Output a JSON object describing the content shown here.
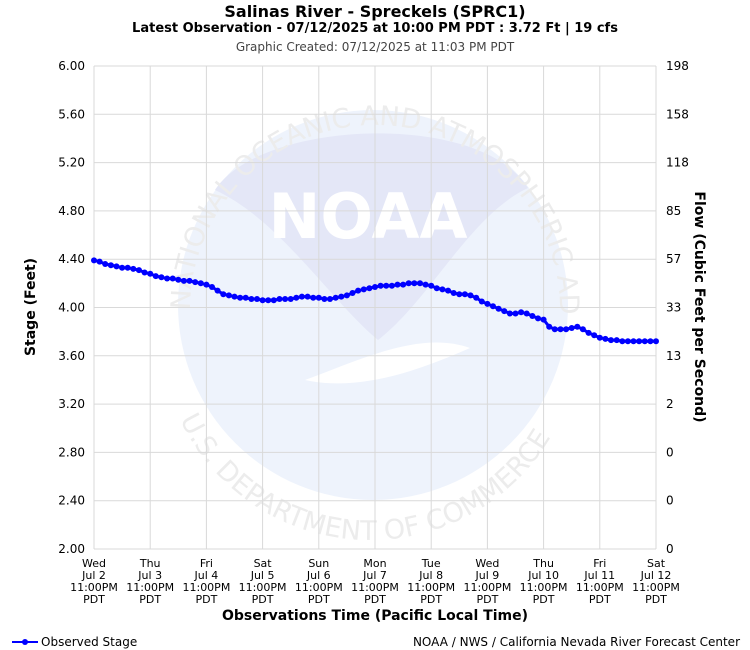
{
  "header": {
    "title": "Salinas River - Spreckels (SPRC1)",
    "subtitle": "Latest Observation - 07/12/2025 at 10:00 PM PDT : 3.72 Ft | 19 cfs",
    "created": "Graphic Created: 07/12/2025 at 11:03 PM PDT"
  },
  "watermark": {
    "logo_text": "NOAA",
    "ring_top": "NATIONAL OCEANIC AND ATMOSPHERIC ADMINISTRATION",
    "ring_bottom": "U.S. DEPARTMENT OF COMMERCE"
  },
  "footer": {
    "legend_label": "Observed Stage",
    "credit": "NOAA / NWS / California Nevada River Forecast Center"
  },
  "colors": {
    "series": "#0000ff",
    "grid": "#d9d9d9",
    "watermark": "#e6ebf8"
  },
  "chart_data": {
    "type": "line",
    "xlabel": "Observations Time (Pacific Local Time)",
    "ylabel": "Stage (Feet)",
    "y2label": "Flow (Cubic Feet per Second)",
    "ylim": [
      2.0,
      6.0
    ],
    "xlim": [
      0,
      10
    ],
    "grid": true,
    "legend": "bottom-left",
    "yticks": [
      "2.00",
      "2.40",
      "2.80",
      "3.20",
      "3.60",
      "4.00",
      "4.40",
      "4.80",
      "5.20",
      "5.60",
      "6.00"
    ],
    "y2ticks": [
      "0",
      "0",
      "0",
      "2",
      "13",
      "33",
      "57",
      "85",
      "118",
      "158",
      "198"
    ],
    "xticks": [
      {
        "day": "Wed",
        "date": "Jul 2",
        "time": "11:00PM",
        "tz": "PDT"
      },
      {
        "day": "Thu",
        "date": "Jul 3",
        "time": "11:00PM",
        "tz": "PDT"
      },
      {
        "day": "Fri",
        "date": "Jul 4",
        "time": "11:00PM",
        "tz": "PDT"
      },
      {
        "day": "Sat",
        "date": "Jul 5",
        "time": "11:00PM",
        "tz": "PDT"
      },
      {
        "day": "Sun",
        "date": "Jul 6",
        "time": "11:00PM",
        "tz": "PDT"
      },
      {
        "day": "Mon",
        "date": "Jul 7",
        "time": "11:00PM",
        "tz": "PDT"
      },
      {
        "day": "Tue",
        "date": "Jul 8",
        "time": "11:00PM",
        "tz": "PDT"
      },
      {
        "day": "Wed",
        "date": "Jul 9",
        "time": "11:00PM",
        "tz": "PDT"
      },
      {
        "day": "Thu",
        "date": "Jul 10",
        "time": "11:00PM",
        "tz": "PDT"
      },
      {
        "day": "Fri",
        "date": "Jul 11",
        "time": "11:00PM",
        "tz": "PDT"
      },
      {
        "day": "Sat",
        "date": "Jul 12",
        "time": "11:00PM",
        "tz": "PDT"
      }
    ],
    "series": [
      {
        "name": "Observed Stage",
        "x": [
          0.0,
          0.1,
          0.2,
          0.3,
          0.4,
          0.5,
          0.6,
          0.7,
          0.8,
          0.9,
          1.0,
          1.1,
          1.2,
          1.3,
          1.4,
          1.5,
          1.6,
          1.7,
          1.8,
          1.9,
          2.0,
          2.1,
          2.2,
          2.3,
          2.4,
          2.5,
          2.6,
          2.7,
          2.8,
          2.9,
          3.0,
          3.1,
          3.2,
          3.3,
          3.4,
          3.5,
          3.6,
          3.7,
          3.8,
          3.9,
          4.0,
          4.1,
          4.2,
          4.3,
          4.4,
          4.5,
          4.6,
          4.7,
          4.8,
          4.9,
          5.0,
          5.1,
          5.2,
          5.3,
          5.4,
          5.5,
          5.6,
          5.7,
          5.8,
          5.9,
          6.0,
          6.1,
          6.2,
          6.3,
          6.4,
          6.5,
          6.6,
          6.7,
          6.8,
          6.9,
          7.0,
          7.1,
          7.2,
          7.3,
          7.4,
          7.5,
          7.6,
          7.7,
          7.8,
          7.9,
          8.0,
          8.1,
          8.2,
          8.3,
          8.4,
          8.5,
          8.6,
          8.7,
          8.8,
          8.9,
          9.0,
          9.1,
          9.2,
          9.3,
          9.4,
          9.5,
          9.6,
          9.7,
          9.8,
          9.9,
          10.0
        ],
        "y": [
          4.39,
          4.38,
          4.36,
          4.35,
          4.34,
          4.33,
          4.33,
          4.32,
          4.31,
          4.29,
          4.28,
          4.26,
          4.25,
          4.24,
          4.24,
          4.23,
          4.22,
          4.22,
          4.21,
          4.2,
          4.19,
          4.17,
          4.14,
          4.11,
          4.1,
          4.09,
          4.08,
          4.08,
          4.07,
          4.07,
          4.06,
          4.06,
          4.06,
          4.07,
          4.07,
          4.07,
          4.08,
          4.09,
          4.09,
          4.08,
          4.08,
          4.07,
          4.07,
          4.08,
          4.09,
          4.1,
          4.12,
          4.14,
          4.15,
          4.16,
          4.17,
          4.18,
          4.18,
          4.18,
          4.19,
          4.19,
          4.2,
          4.2,
          4.2,
          4.19,
          4.18,
          4.16,
          4.15,
          4.14,
          4.12,
          4.11,
          4.11,
          4.1,
          4.08,
          4.05,
          4.03,
          4.01,
          3.99,
          3.97,
          3.95,
          3.95,
          3.96,
          3.95,
          3.93,
          3.91,
          3.9,
          3.84,
          3.82,
          3.82,
          3.82,
          3.83,
          3.84,
          3.82,
          3.79,
          3.77,
          3.75,
          3.74,
          3.73,
          3.73,
          3.72,
          3.72,
          3.72,
          3.72,
          3.72,
          3.72,
          3.72
        ]
      }
    ]
  }
}
